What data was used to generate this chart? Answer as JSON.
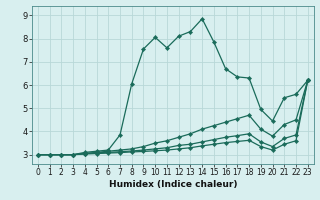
{
  "title": "",
  "xlabel": "Humidex (Indice chaleur)",
  "bg_color": "#d8efef",
  "grid_color": "#b8d8d8",
  "line_color": "#1a6b5a",
  "xlim": [
    -0.5,
    23.5
  ],
  "ylim": [
    2.6,
    9.4
  ],
  "xticks": [
    0,
    1,
    2,
    3,
    4,
    5,
    6,
    7,
    8,
    9,
    10,
    11,
    12,
    13,
    14,
    15,
    16,
    17,
    18,
    19,
    20,
    21,
    22,
    23
  ],
  "yticks": [
    3,
    4,
    5,
    6,
    7,
    8,
    9
  ],
  "lines": [
    {
      "x": [
        0,
        1,
        2,
        3,
        4,
        5,
        6,
        7,
        8,
        9,
        10,
        11,
        12,
        13,
        14,
        15,
        16,
        17,
        18,
        19,
        20,
        21,
        22,
        23
      ],
      "y": [
        3,
        3,
        3,
        3,
        3.1,
        3.15,
        3.2,
        3.85,
        6.05,
        7.55,
        8.05,
        7.6,
        8.1,
        8.3,
        8.85,
        7.85,
        6.7,
        6.35,
        6.3,
        4.95,
        4.45,
        5.45,
        5.6,
        6.2
      ]
    },
    {
      "x": [
        0,
        1,
        2,
        3,
        4,
        5,
        6,
        7,
        8,
        9,
        10,
        11,
        12,
        13,
        14,
        15,
        16,
        17,
        18,
        19,
        20,
        21,
        22,
        23
      ],
      "y": [
        3,
        3,
        3,
        3,
        3.05,
        3.1,
        3.15,
        3.2,
        3.25,
        3.35,
        3.5,
        3.6,
        3.75,
        3.9,
        4.1,
        4.25,
        4.4,
        4.55,
        4.7,
        4.1,
        3.8,
        4.3,
        4.5,
        6.2
      ]
    },
    {
      "x": [
        0,
        1,
        2,
        3,
        4,
        5,
        6,
        7,
        8,
        9,
        10,
        11,
        12,
        13,
        14,
        15,
        16,
        17,
        18,
        19,
        20,
        21,
        22,
        23
      ],
      "y": [
        3,
        3,
        3,
        3,
        3.05,
        3.08,
        3.1,
        3.13,
        3.16,
        3.2,
        3.25,
        3.3,
        3.4,
        3.45,
        3.55,
        3.65,
        3.75,
        3.82,
        3.9,
        3.55,
        3.35,
        3.7,
        3.85,
        6.2
      ]
    },
    {
      "x": [
        0,
        1,
        2,
        3,
        4,
        5,
        6,
        7,
        8,
        9,
        10,
        11,
        12,
        13,
        14,
        15,
        16,
        17,
        18,
        19,
        20,
        21,
        22,
        23
      ],
      "y": [
        3,
        3,
        3,
        3,
        3.03,
        3.05,
        3.07,
        3.09,
        3.12,
        3.14,
        3.17,
        3.2,
        3.25,
        3.3,
        3.38,
        3.45,
        3.52,
        3.57,
        3.62,
        3.35,
        3.2,
        3.45,
        3.6,
        6.2
      ]
    }
  ],
  "xlabel_fontsize": 6.5,
  "tick_fontsize": 5.5
}
